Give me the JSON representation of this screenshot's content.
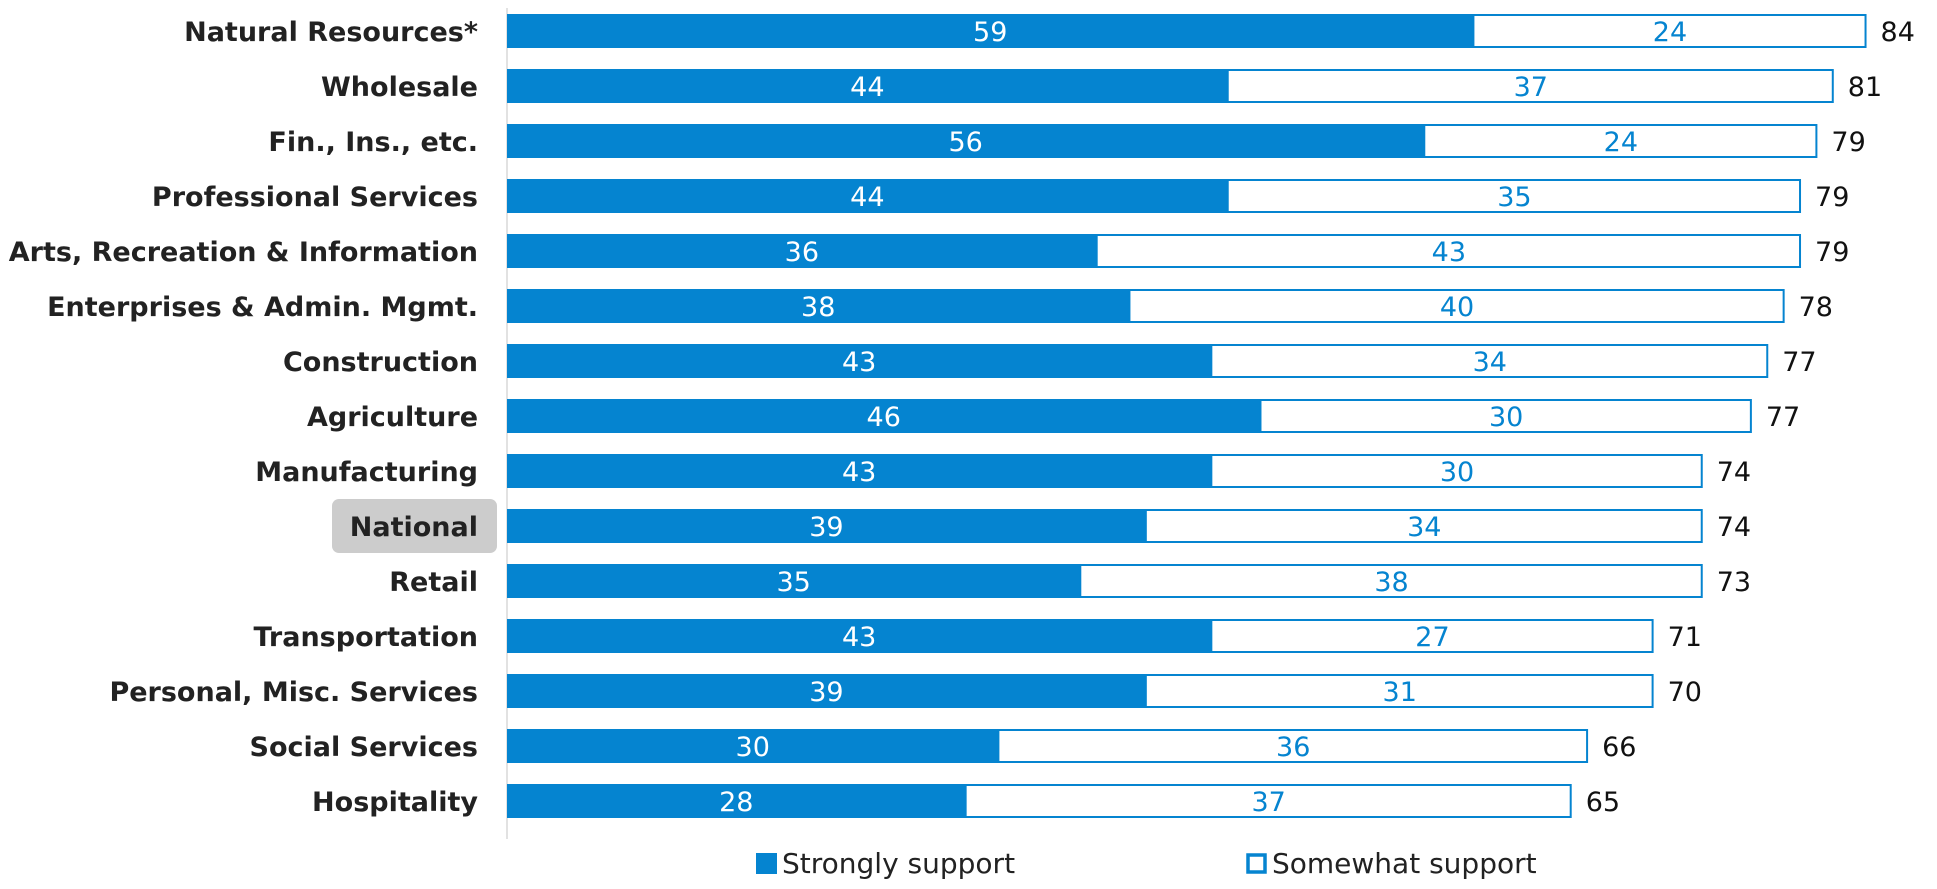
{
  "chart_data": {
    "type": "bar",
    "orientation": "horizontal",
    "stacked": true,
    "categories": [
      "Natural Resources*",
      "Wholesale",
      "Fin., Ins., etc.",
      "Professional Services",
      "Arts, Recreation & Information",
      "Enterprises & Admin. Mgmt.",
      "Construction",
      "Agriculture",
      "Manufacturing",
      "National",
      "Retail",
      "Transportation",
      "Personal, Misc. Services",
      "Social Services",
      "Hospitality"
    ],
    "highlighted_category": "National",
    "series": [
      {
        "name": "Strongly support",
        "values": [
          59,
          44,
          56,
          44,
          36,
          38,
          43,
          46,
          43,
          39,
          35,
          43,
          39,
          30,
          28
        ]
      },
      {
        "name": "Somewhat support",
        "values": [
          24,
          37,
          24,
          35,
          43,
          40,
          34,
          30,
          30,
          34,
          38,
          27,
          31,
          36,
          37
        ]
      }
    ],
    "totals": [
      84,
      81,
      79,
      79,
      79,
      78,
      77,
      77,
      74,
      74,
      73,
      71,
      70,
      66,
      65
    ],
    "xlim": [
      0,
      84
    ],
    "grid": false,
    "legend_position": "bottom",
    "colors": {
      "strongly": "#0584d0",
      "somewhat_fill": "#ffffff",
      "somewhat_text": "#0584d0",
      "highlight_bg": "#cccccc",
      "axis": "#d9d9d9"
    }
  }
}
